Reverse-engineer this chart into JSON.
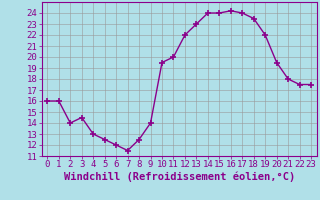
{
  "hours": [
    0,
    1,
    2,
    3,
    4,
    5,
    6,
    7,
    8,
    9,
    10,
    11,
    12,
    13,
    14,
    15,
    16,
    17,
    18,
    19,
    20,
    21,
    22,
    23
  ],
  "values": [
    16,
    16,
    14,
    14.5,
    13,
    12.5,
    12,
    11.5,
    12.5,
    14,
    19.5,
    20,
    22,
    23,
    24,
    24,
    24.2,
    24,
    23.5,
    22,
    19.5,
    18,
    17.5,
    17.5
  ],
  "line_color": "#8B008B",
  "marker": "+",
  "bg_color": "#b0e0e8",
  "grid_color": "#999999",
  "xlabel": "Windchill (Refroidissement éolien,°C)",
  "ylim": [
    11,
    25
  ],
  "xlim_min": -0.5,
  "xlim_max": 23.5,
  "yticks": [
    11,
    12,
    13,
    14,
    15,
    16,
    17,
    18,
    19,
    20,
    21,
    22,
    23,
    24
  ],
  "xticks": [
    0,
    1,
    2,
    3,
    4,
    5,
    6,
    7,
    8,
    9,
    10,
    11,
    12,
    13,
    14,
    15,
    16,
    17,
    18,
    19,
    20,
    21,
    22,
    23
  ],
  "tick_color": "#8B008B",
  "label_color": "#8B008B",
  "spine_color": "#8B008B",
  "label_fontsize": 7.5,
  "tick_fontsize": 6.5,
  "xlabel_fontsize": 7.5,
  "line_width": 1.0,
  "marker_size": 4,
  "marker_edge_width": 1.2
}
